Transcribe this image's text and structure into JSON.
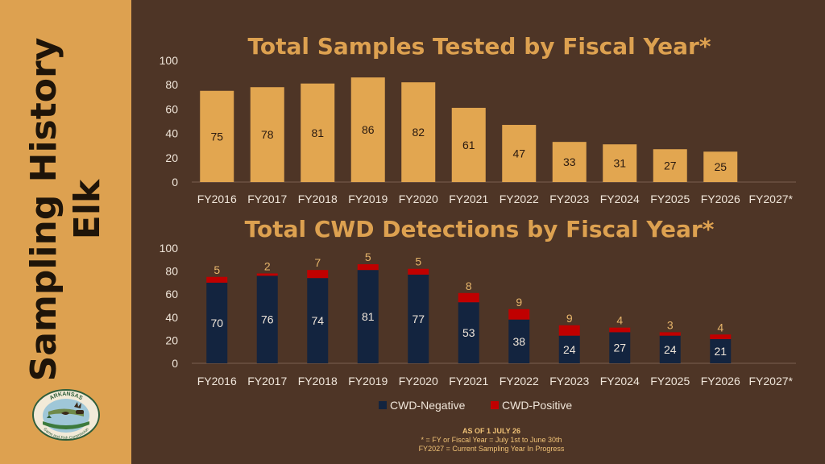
{
  "sidebar": {
    "title_line1": "Sampling History",
    "title_line2": "Elk",
    "logo": {
      "top_text": "ARKANSAS",
      "bottom_text": "Game and Fish Commission"
    }
  },
  "colors": {
    "background": "#4e3526",
    "sidebar": "#dda150",
    "bar_total": "#e2a650",
    "cwd_negative": "#13243f",
    "cwd_positive": "#c00000"
  },
  "chart_data": [
    {
      "type": "bar",
      "title": "Total Samples Tested by Fiscal Year*",
      "categories": [
        "FY2016",
        "FY2017",
        "FY2018",
        "FY2019",
        "FY2020",
        "FY2021",
        "FY2022",
        "FY2023",
        "FY2024",
        "FY2025",
        "FY2026",
        "FY2027*"
      ],
      "values": [
        75,
        78,
        81,
        86,
        82,
        61,
        47,
        33,
        31,
        27,
        25,
        null
      ],
      "ylim": [
        0,
        100
      ],
      "yticks": [
        0,
        20,
        40,
        60,
        80,
        100
      ],
      "grid": false
    },
    {
      "type": "bar",
      "stacked": true,
      "title": "Total CWD Detections by Fiscal Year*",
      "categories": [
        "FY2016",
        "FY2017",
        "FY2018",
        "FY2019",
        "FY2020",
        "FY2021",
        "FY2022",
        "FY2023",
        "FY2024",
        "FY2025",
        "FY2026",
        "FY2027*"
      ],
      "series": [
        {
          "name": "CWD-Negative",
          "values": [
            70,
            76,
            74,
            81,
            77,
            53,
            38,
            24,
            27,
            24,
            21,
            null
          ]
        },
        {
          "name": "CWD-Positive",
          "values": [
            5,
            2,
            7,
            5,
            5,
            8,
            9,
            9,
            4,
            3,
            4,
            null
          ]
        }
      ],
      "ylim": [
        0,
        100
      ],
      "yticks": [
        0,
        20,
        40,
        60,
        80,
        100
      ],
      "grid": false,
      "legend": "bottom"
    }
  ],
  "footnotes": {
    "as_of": "AS OF 1 JULY 26",
    "fy_line": "* = FY or Fiscal Year = July 1st to June 30th",
    "current": "FY2027 = Current Sampling Year In Progress"
  }
}
